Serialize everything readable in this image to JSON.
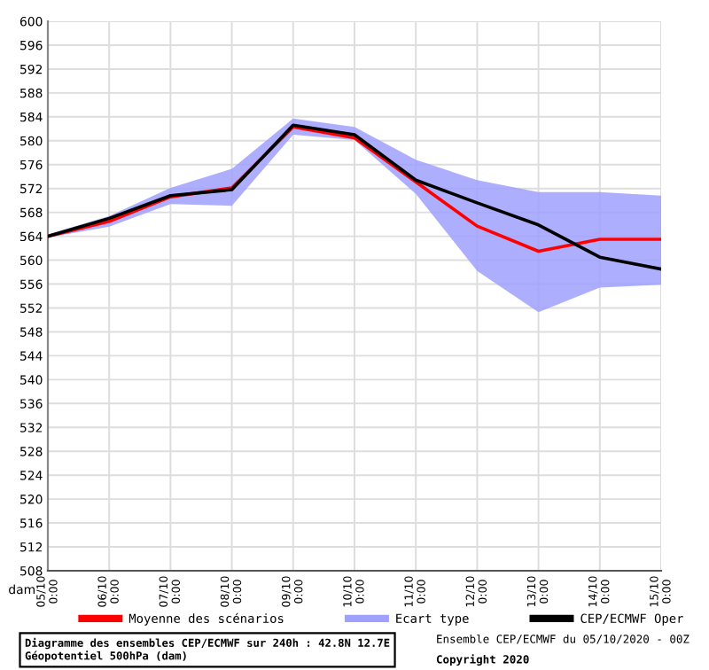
{
  "chart_data": {
    "type": "line",
    "title": "Diagramme des ensembles CEP/ECMWF sur 240h : 42.8N 12.7E",
    "subtitle": "Géopotentiel 500hPa (dam)",
    "ylabel": "dam",
    "annotations": [
      "Ensemble CEP/ECMWF du 05/10/2020 - 00Z",
      "Copyright 2020"
    ],
    "categories": [
      "05/10\n0:00",
      "06/10\n0:00",
      "07/10\n0:00",
      "08/10\n0:00",
      "09/10\n0:00",
      "10/10\n0:00",
      "11/10\n0:00",
      "12/10\n0:00",
      "13/10\n0:00",
      "14/10\n0:00",
      "15/10\n0:00"
    ],
    "series": [
      {
        "name": "Moyenne des scénarios",
        "type": "line",
        "color": "#ff0000",
        "values": [
          564.0,
          566.5,
          570.6,
          572.1,
          582.3,
          580.5,
          573.1,
          565.7,
          561.5,
          563.5,
          563.5
        ]
      },
      {
        "name": "Ecart type",
        "type": "area",
        "color": "#a0a0ff",
        "values": [
          null,
          null,
          null,
          null,
          null,
          null,
          null,
          null,
          null,
          null,
          null
        ],
        "lower": [
          563.8,
          565.6,
          569.4,
          569.1,
          581.0,
          580.1,
          571.1,
          558.2,
          551.3,
          555.4,
          555.9
        ],
        "upper": [
          564.3,
          567.4,
          572.1,
          575.3,
          583.7,
          582.3,
          576.8,
          573.4,
          571.4,
          571.4,
          570.8
        ]
      },
      {
        "name": "CEP/ECMWF Oper",
        "type": "line",
        "color": "#000000",
        "values": [
          564.0,
          567.0,
          570.8,
          571.8,
          582.6,
          581.0,
          573.4,
          569.6,
          565.9,
          560.5,
          558.5
        ]
      }
    ],
    "ylim": [
      508,
      600
    ],
    "yticks": [
      508,
      512,
      516,
      520,
      524,
      528,
      532,
      536,
      540,
      544,
      548,
      552,
      556,
      560,
      564,
      568,
      572,
      576,
      580,
      584,
      588,
      592,
      596,
      600
    ],
    "grid": true,
    "legend": "bottom"
  }
}
